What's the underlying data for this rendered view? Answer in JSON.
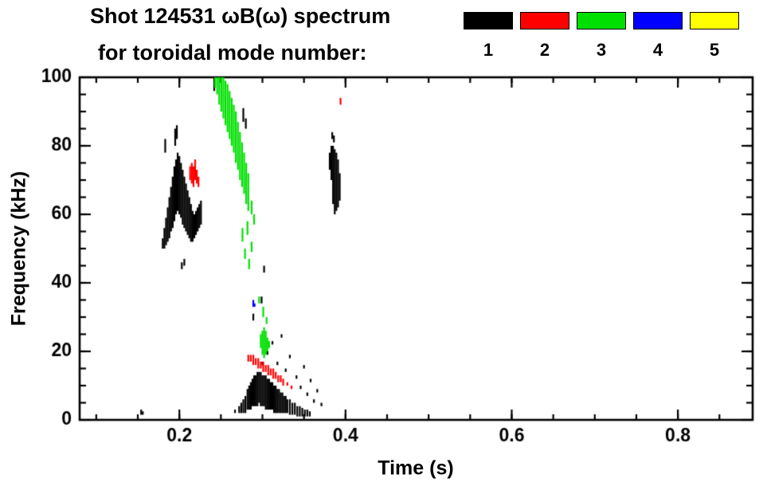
{
  "chart_data": {
    "type": "scatter",
    "title": "Shot 124531 ωB(ω) spectrum",
    "subtitle": "for toroidal mode number:",
    "xlabel": "Time (s)",
    "ylabel": "Frequency (kHz)",
    "xlim": [
      0.08,
      0.89
    ],
    "ylim": [
      0,
      100
    ],
    "xticks": [
      0.2,
      0.4,
      0.6,
      0.8
    ],
    "xtick_labels": [
      "0.2",
      "0.4",
      "0.6",
      "0.8"
    ],
    "yticks": [
      0,
      20,
      40,
      60,
      80,
      100
    ],
    "ytick_labels": [
      "0",
      "20",
      "40",
      "60",
      "80",
      "100"
    ],
    "x_minor": 0.05,
    "y_minor": 5,
    "grid": false,
    "legend_position": "top-right",
    "stroke_format": "[time_s, freq_low_kHz, freq_high_kHz] short vertical mark",
    "series": [
      {
        "name": "toroidal-mode-1",
        "label": "1",
        "color": "#000000",
        "strokes": [
          [
            0.154,
            1.5,
            3
          ],
          [
            0.156,
            1.5,
            2.5
          ],
          [
            0.183,
            78,
            82
          ],
          [
            0.195,
            80,
            85
          ],
          [
            0.197,
            82,
            86
          ],
          [
            0.18,
            50,
            53
          ],
          [
            0.182,
            50,
            56
          ],
          [
            0.184,
            51,
            59
          ],
          [
            0.186,
            52,
            62
          ],
          [
            0.188,
            53,
            65
          ],
          [
            0.19,
            55,
            68
          ],
          [
            0.192,
            56,
            71
          ],
          [
            0.194,
            58,
            74
          ],
          [
            0.196,
            60,
            76
          ],
          [
            0.198,
            61,
            78
          ],
          [
            0.2,
            60,
            77
          ],
          [
            0.202,
            59,
            75
          ],
          [
            0.204,
            57,
            73
          ],
          [
            0.206,
            56,
            71
          ],
          [
            0.208,
            55,
            69
          ],
          [
            0.21,
            54,
            67
          ],
          [
            0.212,
            53,
            65
          ],
          [
            0.214,
            52,
            63
          ],
          [
            0.216,
            52,
            61
          ],
          [
            0.218,
            53,
            60
          ],
          [
            0.22,
            54,
            61
          ],
          [
            0.222,
            55,
            62
          ],
          [
            0.224,
            56,
            63
          ],
          [
            0.226,
            57,
            64
          ],
          [
            0.203,
            44,
            46
          ],
          [
            0.206,
            45,
            47
          ],
          [
            0.242,
            96,
            100
          ],
          [
            0.277,
            87,
            91
          ],
          [
            0.28,
            85,
            88
          ],
          [
            0.289,
            29,
            31
          ],
          [
            0.299,
            34,
            36
          ],
          [
            0.302,
            43,
            45
          ],
          [
            0.267,
            2,
            3
          ],
          [
            0.272,
            2,
            4
          ],
          [
            0.2745,
            2,
            5
          ],
          [
            0.277,
            2,
            6
          ],
          [
            0.2795,
            2,
            7
          ],
          [
            0.282,
            3,
            9
          ],
          [
            0.284,
            3,
            10
          ],
          [
            0.286,
            3,
            11
          ],
          [
            0.288,
            4,
            12
          ],
          [
            0.29,
            4,
            13
          ],
          [
            0.292,
            4,
            13
          ],
          [
            0.294,
            4,
            14
          ],
          [
            0.296,
            5,
            14
          ],
          [
            0.298,
            4,
            14
          ],
          [
            0.3,
            4,
            13
          ],
          [
            0.302,
            4,
            13
          ],
          [
            0.304,
            3,
            13
          ],
          [
            0.306,
            3,
            12
          ],
          [
            0.308,
            3,
            12
          ],
          [
            0.31,
            3,
            11
          ],
          [
            0.312,
            3,
            11
          ],
          [
            0.314,
            2,
            10
          ],
          [
            0.316,
            2,
            10
          ],
          [
            0.318,
            2,
            9
          ],
          [
            0.32,
            2,
            9
          ],
          [
            0.322,
            2,
            8
          ],
          [
            0.324,
            2,
            8
          ],
          [
            0.326,
            2,
            7
          ],
          [
            0.328,
            2,
            7
          ],
          [
            0.33,
            2,
            6
          ],
          [
            0.333,
            1.5,
            6
          ],
          [
            0.336,
            1.5,
            5
          ],
          [
            0.339,
            1.5,
            5
          ],
          [
            0.342,
            1,
            4
          ],
          [
            0.345,
            1,
            4
          ],
          [
            0.348,
            1,
            3.5
          ],
          [
            0.351,
            1,
            3
          ],
          [
            0.354,
            1,
            3
          ],
          [
            0.357,
            1,
            2.5
          ],
          [
            0.3,
            16,
            17
          ],
          [
            0.306,
            19,
            20
          ],
          [
            0.312,
            22,
            23
          ],
          [
            0.318,
            16,
            17
          ],
          [
            0.323,
            24,
            25
          ],
          [
            0.328,
            14,
            15
          ],
          [
            0.333,
            18,
            19
          ],
          [
            0.341,
            12,
            13
          ],
          [
            0.346,
            9,
            10
          ],
          [
            0.35,
            15,
            16
          ],
          [
            0.354,
            7,
            8
          ],
          [
            0.358,
            11,
            12
          ],
          [
            0.362,
            5,
            6
          ],
          [
            0.366,
            8,
            9
          ],
          [
            0.371,
            4,
            5
          ],
          [
            0.381,
            73,
            78
          ],
          [
            0.383,
            70,
            80
          ],
          [
            0.384,
            82,
            84
          ],
          [
            0.385,
            63,
            80
          ],
          [
            0.386,
            81,
            83
          ],
          [
            0.387,
            60,
            79
          ],
          [
            0.389,
            61,
            78
          ],
          [
            0.391,
            62,
            76
          ],
          [
            0.393,
            64,
            72
          ]
        ]
      },
      {
        "name": "toroidal-mode-2",
        "label": "2",
        "color": "#ff0000",
        "strokes": [
          [
            0.213,
            70,
            74
          ],
          [
            0.215,
            69,
            75
          ],
          [
            0.217,
            68,
            74
          ],
          [
            0.219,
            70,
            76
          ],
          [
            0.221,
            69,
            73
          ],
          [
            0.223,
            68,
            71
          ],
          [
            0.283,
            17,
            19
          ],
          [
            0.286,
            17,
            19
          ],
          [
            0.289,
            16,
            19
          ],
          [
            0.292,
            16,
            18
          ],
          [
            0.295,
            15,
            18
          ],
          [
            0.298,
            15,
            17
          ],
          [
            0.301,
            14,
            17
          ],
          [
            0.304,
            14,
            16
          ],
          [
            0.307,
            13,
            16
          ],
          [
            0.31,
            13,
            15
          ],
          [
            0.313,
            12,
            15
          ],
          [
            0.316,
            12,
            14
          ],
          [
            0.319,
            11,
            13
          ],
          [
            0.322,
            11,
            13
          ],
          [
            0.325,
            10,
            12
          ],
          [
            0.33,
            10,
            11
          ],
          [
            0.335,
            9,
            10
          ],
          [
            0.394,
            92,
            94
          ]
        ]
      },
      {
        "name": "toroidal-mode-3",
        "label": "3",
        "color": "#00e000",
        "strokes": [
          [
            0.243,
            97,
            100
          ],
          [
            0.2455,
            95,
            100
          ],
          [
            0.248,
            92,
            100
          ],
          [
            0.2505,
            90,
            100
          ],
          [
            0.253,
            88,
            100
          ],
          [
            0.2555,
            86,
            99
          ],
          [
            0.258,
            84,
            98
          ],
          [
            0.2605,
            82,
            96
          ],
          [
            0.263,
            80,
            94
          ],
          [
            0.2655,
            78,
            92
          ],
          [
            0.268,
            75,
            90
          ],
          [
            0.2705,
            73,
            87
          ],
          [
            0.273,
            70,
            84
          ],
          [
            0.2755,
            68,
            81
          ],
          [
            0.278,
            66,
            78
          ],
          [
            0.2805,
            63,
            75
          ],
          [
            0.283,
            61,
            72
          ],
          [
            0.276,
            52,
            56
          ],
          [
            0.279,
            47,
            50
          ],
          [
            0.282,
            54,
            58
          ],
          [
            0.284,
            44,
            47
          ],
          [
            0.287,
            49,
            52
          ],
          [
            0.287,
            60,
            64
          ],
          [
            0.29,
            57,
            60
          ],
          [
            0.296,
            34,
            36
          ],
          [
            0.298,
            21,
            25
          ],
          [
            0.3,
            19,
            26
          ],
          [
            0.301,
            30,
            33
          ],
          [
            0.302,
            18,
            27
          ],
          [
            0.304,
            19,
            26
          ],
          [
            0.305,
            28,
            30
          ],
          [
            0.306,
            20,
            24
          ],
          [
            0.308,
            21,
            23
          ]
        ]
      },
      {
        "name": "toroidal-mode-4",
        "label": "4",
        "color": "#0000ff",
        "strokes": [
          [
            0.289,
            33,
            35
          ],
          [
            0.2905,
            33,
            34
          ]
        ]
      },
      {
        "name": "toroidal-mode-5",
        "label": "5",
        "color": "#ffff00",
        "strokes": []
      }
    ]
  }
}
